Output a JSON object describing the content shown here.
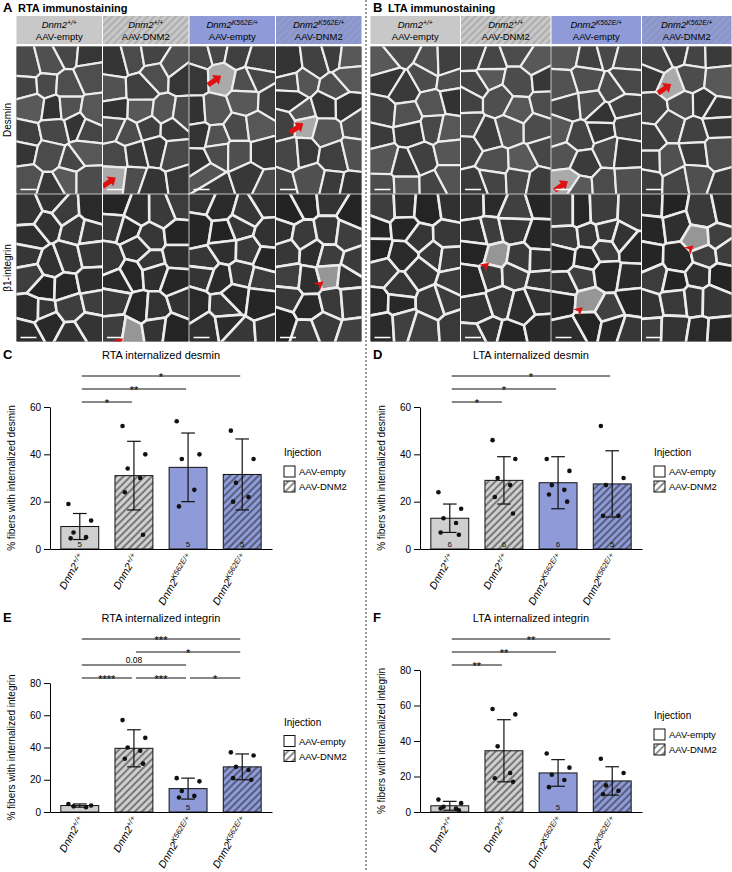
{
  "image_panels": [
    {
      "panel": "A",
      "title": "RTA immunostaining",
      "rows": [
        "Desmin",
        "β1-integrin"
      ],
      "columns": [
        {
          "genotype": "Dnm2+/+",
          "injection": "AAV-empty",
          "color": "#c8c8c8",
          "line_style": "solid"
        },
        {
          "genotype": "Dnm2+/+",
          "injection": "AAV-DNM2",
          "color": "#c8c8c8",
          "line_style": "hatched"
        },
        {
          "genotype": "Dnm2K562E/+",
          "injection": "AAV-empty",
          "color": "#8e9bd8",
          "line_style": "solid"
        },
        {
          "genotype": "Dnm2K562E/+",
          "injection": "AAV-DNM2",
          "color": "#8e9bd8",
          "line_style": "hatched"
        }
      ]
    },
    {
      "panel": "B",
      "title": "LTA immunostaining",
      "columns": [
        {
          "genotype": "Dnm2+/+",
          "injection": "AAV-empty",
          "color": "#c8c8c8",
          "line_style": "solid"
        },
        {
          "genotype": "Dnm2+/+",
          "injection": "AAV-DNM2",
          "color": "#c8c8c8",
          "line_style": "hatched"
        },
        {
          "genotype": "Dnm2K562E/+",
          "injection": "AAV-empty",
          "color": "#8e9bd8",
          "line_style": "solid"
        },
        {
          "genotype": "Dnm2K562E/+",
          "injection": "AAV-DNM2",
          "color": "#8e9bd8",
          "line_style": "hatched"
        }
      ]
    }
  ],
  "chart_data": [
    {
      "type": "bar",
      "panel": "C",
      "title": "RTA internalized desmin",
      "y_label": "% fibers with internalized desmin",
      "categories": [
        "Dnm2+/+",
        "Dnm2+/+",
        "Dnm2K562E/+",
        "Dnm2K562E/+"
      ],
      "ylim": [
        0,
        60
      ],
      "yticks": [
        0,
        20,
        40,
        60
      ],
      "legend": "right",
      "legend_title": "Injection",
      "series": [
        {
          "name": "AAV-empty",
          "line_style": "solid",
          "colors": [
            "#cfcfcf",
            null,
            "#8e9bd8",
            null
          ],
          "values": [
            9.5,
            null,
            34.5,
            null
          ],
          "errors": [
            5.5,
            null,
            14.5,
            null
          ],
          "points": [
            [
              19,
              12,
              7,
              5,
              4.5
            ],
            null,
            [
              54,
              40,
              38,
              25,
              18
            ],
            null
          ],
          "n": [
            5,
            null,
            5,
            null
          ]
        },
        {
          "name": "AAV-DNM2",
          "line_style": "hatched",
          "colors": [
            null,
            "#cfcfcf",
            null,
            "#8e9bd8"
          ],
          "values": [
            null,
            31,
            null,
            31.5
          ],
          "errors": [
            null,
            14.5,
            null,
            15
          ],
          "points": [
            null,
            [
              52,
              40,
              34,
              30,
              24,
              6
            ],
            null,
            [
              50,
              38,
              28,
              22,
              20
            ]
          ],
          "n": [
            null,
            null,
            null,
            5
          ]
        }
      ],
      "annotations": [
        {
          "from": 0,
          "to": 1,
          "text": "*"
        },
        {
          "from": 0,
          "to": 2,
          "text": "**"
        },
        {
          "from": 0,
          "to": 3,
          "text": "*"
        }
      ]
    },
    {
      "type": "bar",
      "panel": "D",
      "title": "LTA internalized desmin",
      "y_label": "% fibers with internalized desmin",
      "categories": [
        "Dnm2+/+",
        "Dnm2+/+",
        "Dnm2K562E/+",
        "Dnm2K562E/+"
      ],
      "ylim": [
        0,
        60
      ],
      "yticks": [
        0,
        20,
        40,
        60
      ],
      "legend": "right",
      "legend_title": "Injection",
      "series": [
        {
          "name": "AAV-empty",
          "line_style": "solid",
          "colors": [
            "#cfcfcf",
            null,
            "#8e9bd8",
            null
          ],
          "values": [
            13,
            null,
            28,
            null
          ],
          "errors": [
            6,
            null,
            11,
            null
          ],
          "points": [
            [
              24,
              17,
              13,
              11,
              7,
              6
            ],
            null,
            [
              38,
              33,
              27,
              25,
              23,
              20
            ],
            null
          ],
          "n": [
            6,
            null,
            6,
            null
          ]
        },
        {
          "name": "AAV-DNM2",
          "line_style": "hatched",
          "colors": [
            null,
            "#cfcfcf",
            null,
            "#8e9bd8"
          ],
          "values": [
            null,
            29,
            null,
            27.5
          ],
          "errors": [
            null,
            10,
            null,
            14
          ],
          "points": [
            null,
            [
              46,
              38,
              30,
              27,
              22,
              15
            ],
            null,
            [
              52,
              30,
              27,
              14,
              14
            ]
          ],
          "n": [
            null,
            6,
            null,
            5
          ]
        }
      ],
      "annotations": [
        {
          "from": 0,
          "to": 1,
          "text": "*"
        },
        {
          "from": 0,
          "to": 2,
          "text": "*"
        },
        {
          "from": 0,
          "to": 3,
          "text": "*"
        }
      ]
    },
    {
      "type": "bar",
      "panel": "E",
      "title": "RTA internalized integrin",
      "y_label": "% fibers with internalized integrin",
      "categories": [
        "Dnm2+/+",
        "Dnm2+/+",
        "Dnm2K562E/+",
        "Dnm2K562E/+"
      ],
      "ylim": [
        0,
        80
      ],
      "yticks": [
        0,
        20,
        40,
        60,
        80
      ],
      "legend": "right",
      "legend_title": "Injection",
      "series": [
        {
          "name": "AAV-empty",
          "line_style": "solid",
          "colors": [
            "#cfcfcf",
            null,
            "#8e9bd8",
            null
          ],
          "values": [
            4,
            null,
            14.5,
            null
          ],
          "errors": [
            1,
            null,
            6.5,
            null
          ],
          "points": [
            [
              5,
              4,
              3.5,
              3
            ],
            null,
            [
              21,
              19,
              13,
              10,
              9
            ],
            null
          ],
          "n": [
            null,
            null,
            5,
            null
          ]
        },
        {
          "name": "AAV-DNM2",
          "line_style": "hatched",
          "colors": [
            null,
            "#cfcfcf",
            null,
            "#8e9bd8"
          ],
          "values": [
            null,
            39.5,
            null,
            28
          ],
          "errors": [
            null,
            11.5,
            null,
            8
          ],
          "points": [
            null,
            [
              57,
              46,
              40,
              38,
              33,
              30
            ],
            null,
            [
              37,
              35,
              28,
              26,
              21,
              20
            ]
          ],
          "n": [
            null,
            null,
            null,
            null
          ]
        }
      ],
      "annotations": [
        {
          "from": 0,
          "to": 1,
          "text": "****"
        },
        {
          "from": 1,
          "to": 2,
          "text": "***"
        },
        {
          "from": 2,
          "to": 3,
          "text": "*"
        },
        {
          "from": 0,
          "to": 2,
          "text": "0.08"
        },
        {
          "from": 1,
          "to": 3,
          "text": "*"
        },
        {
          "from": 0,
          "to": 3,
          "text": "***"
        }
      ]
    },
    {
      "type": "bar",
      "panel": "F",
      "title": "LTA internalized integrin",
      "y_label": "% fibers with internalized integrin",
      "categories": [
        "Dnm2+/+",
        "Dnm2+/+",
        "Dnm2K562E/+",
        "Dnm2K562E/+"
      ],
      "ylim": [
        0,
        80
      ],
      "yticks": [
        0,
        20,
        40,
        60,
        80
      ],
      "legend": "right",
      "legend_title": "Injection",
      "series": [
        {
          "name": "AAV-empty",
          "line_style": "solid",
          "colors": [
            "#cfcfcf",
            null,
            "#8e9bd8",
            null
          ],
          "values": [
            3.5,
            null,
            22,
            null
          ],
          "errors": [
            2.5,
            null,
            7.5,
            null
          ],
          "points": [
            [
              7,
              5,
              3,
              2,
              2,
              1
            ],
            null,
            [
              33,
              25,
              21,
              18,
              14
            ],
            null
          ],
          "n": [
            null,
            null,
            5,
            null
          ]
        },
        {
          "name": "AAV-DNM2",
          "line_style": "hatched",
          "colors": [
            null,
            "#cfcfcf",
            null,
            "#8e9bd8"
          ],
          "values": [
            null,
            34.5,
            null,
            17.5
          ],
          "errors": [
            null,
            17.5,
            null,
            8
          ],
          "points": [
            null,
            [
              58,
              55,
              37,
              22,
              19,
              17
            ],
            null,
            [
              30,
              22,
              15,
              12,
              10
            ]
          ],
          "n": [
            null,
            null,
            null,
            null
          ]
        }
      ],
      "annotations": [
        {
          "from": 0,
          "to": 1,
          "text": "**"
        },
        {
          "from": 0,
          "to": 2,
          "text": "**"
        },
        {
          "from": 0,
          "to": 3,
          "text": "**"
        }
      ]
    }
  ]
}
